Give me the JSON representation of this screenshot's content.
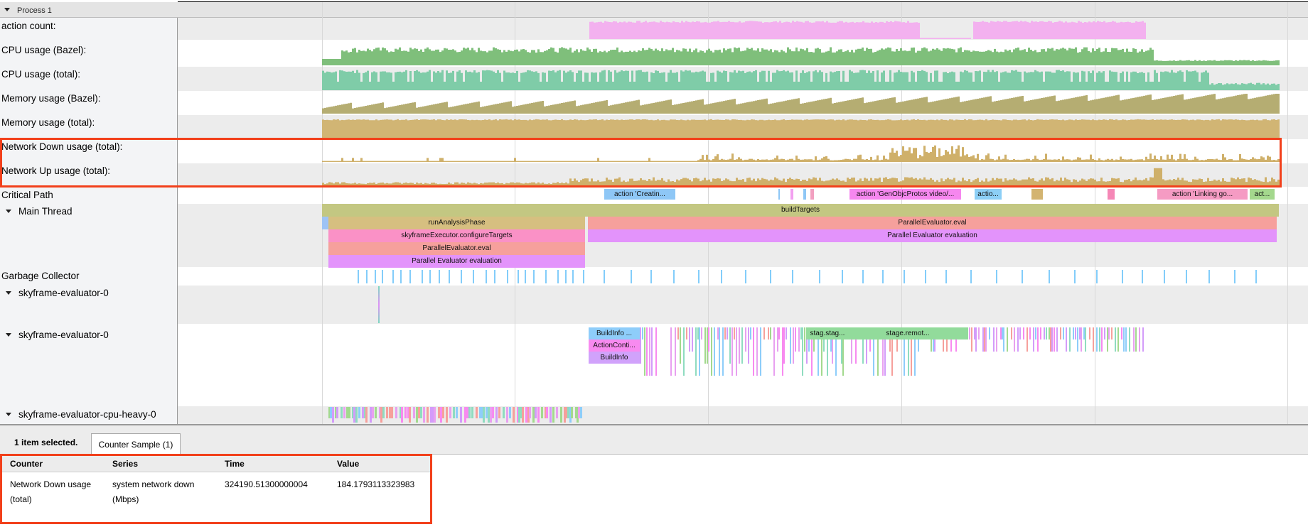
{
  "process": {
    "title": "Process 1"
  },
  "tracks": {
    "action_count": "action count:",
    "cpu_bazel": "CPU usage (Bazel):",
    "cpu_total": "CPU usage (total):",
    "mem_bazel": "Memory usage (Bazel):",
    "mem_total": "Memory usage (total):",
    "net_down": "Network Down usage (total):",
    "net_up": "Network Up usage (total):",
    "critical_path": "Critical Path",
    "main_thread": "Main Thread",
    "gc": "Garbage Collector",
    "sky1": "skyframe-evaluator-0",
    "sky2": "skyframe-evaluator-0",
    "cpu_heavy": "skyframe-evaluator-cpu-heavy-0"
  },
  "colors": {
    "action_count": "#f3b1ef",
    "cpu_bazel": "#7fbf7b",
    "cpu_total": "#7fcca8",
    "mem_bazel": "#b5ad72",
    "mem_total": "#d1b574",
    "network": "#cfb06a",
    "highlight": "#f2401b"
  },
  "slices": {
    "critical": [
      "action 'Creatin...",
      "action 'GenObjcProtos video/...",
      "actio...",
      "action 'Linking go...",
      "act..."
    ],
    "main": [
      "buildTargets",
      "runAnalysisPhase",
      "ParallelEvaluator.eval",
      "skyframeExecutor.configureTargets",
      "Parallel Evaluator evaluation",
      "ParallelEvaluator.eval",
      "Parallel Evaluator evaluation"
    ],
    "sky2": [
      "BuildInfo ...",
      "ActionConti...",
      "BuildInfo",
      "stag.stag...",
      "stage.remot..."
    ]
  },
  "bottom": {
    "selection": "1 item selected.",
    "tab": "Counter Sample (1)",
    "headers": [
      "Counter",
      "Series",
      "Time",
      "Value"
    ],
    "row": {
      "counter": "Network Down usage (total)",
      "series": "system network down (Mbps)",
      "time": "324190.51300000004",
      "value": "184.1793113323983"
    }
  }
}
